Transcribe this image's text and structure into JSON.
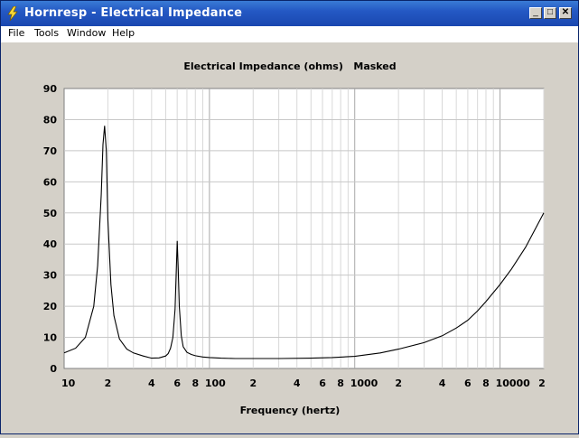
{
  "window": {
    "title": "Hornresp - Electrical Impedance",
    "controls": {
      "minimize": "_",
      "maximize": "□",
      "close": "✕"
    }
  },
  "menu": [
    "File",
    "Tools",
    "Window",
    "Help"
  ],
  "colors": {
    "titlebar": "#2458c4",
    "plot_bg": "#ffffff",
    "grid": "#c0c0c0",
    "curve": "#000000"
  },
  "chart_data": {
    "type": "line",
    "title": "Electrical Impedance (ohms)   Masked",
    "xlabel": "Frequency (hertz)",
    "ylabel": "",
    "x_scale": "log",
    "xlim": [
      10,
      20000
    ],
    "ylim": [
      0,
      90
    ],
    "y_ticks": [
      "0",
      "10",
      "20",
      "30",
      "40",
      "50",
      "60",
      "70",
      "80",
      "90"
    ],
    "x_tick_labels": [
      {
        "value": 10,
        "label": "10"
      },
      {
        "value": 20,
        "label": "2"
      },
      {
        "value": 40,
        "label": "4"
      },
      {
        "value": 60,
        "label": "6"
      },
      {
        "value": 80,
        "label": "8"
      },
      {
        "value": 100,
        "label": "100"
      },
      {
        "value": 200,
        "label": "2"
      },
      {
        "value": 400,
        "label": "4"
      },
      {
        "value": 600,
        "label": "6"
      },
      {
        "value": 800,
        "label": "8"
      },
      {
        "value": 1000,
        "label": "1000"
      },
      {
        "value": 2000,
        "label": "2"
      },
      {
        "value": 4000,
        "label": "4"
      },
      {
        "value": 6000,
        "label": "6"
      },
      {
        "value": 8000,
        "label": "8"
      },
      {
        "value": 10000,
        "label": "10000"
      },
      {
        "value": 20000,
        "label": "2"
      }
    ],
    "series": [
      {
        "x": [
          10,
          12,
          14,
          16,
          17,
          18,
          18.5,
          19,
          19.5,
          20,
          21,
          22,
          24,
          27,
          30,
          35,
          40,
          45,
          50,
          52,
          54,
          56,
          58,
          59,
          60,
          61,
          62,
          64,
          66,
          70,
          75,
          80,
          90,
          100,
          120,
          150,
          200,
          300,
          500,
          700,
          1000,
          1500,
          2000,
          3000,
          4000,
          5000,
          6000,
          7000,
          8000,
          10000,
          12000,
          15000,
          20000
        ],
        "y": [
          5,
          6.5,
          10,
          20,
          33,
          56,
          72,
          78,
          70,
          48,
          27,
          17,
          9.5,
          6.2,
          5,
          4,
          3.3,
          3.4,
          4,
          4.8,
          6.5,
          10,
          19,
          30,
          41,
          32,
          20,
          10.5,
          7,
          5.2,
          4.5,
          4.1,
          3.7,
          3.5,
          3.3,
          3.2,
          3.2,
          3.2,
          3.3,
          3.5,
          3.9,
          5,
          6.2,
          8.3,
          10.5,
          13,
          15.5,
          18.5,
          21.5,
          27,
          32,
          39,
          50
        ]
      }
    ]
  }
}
